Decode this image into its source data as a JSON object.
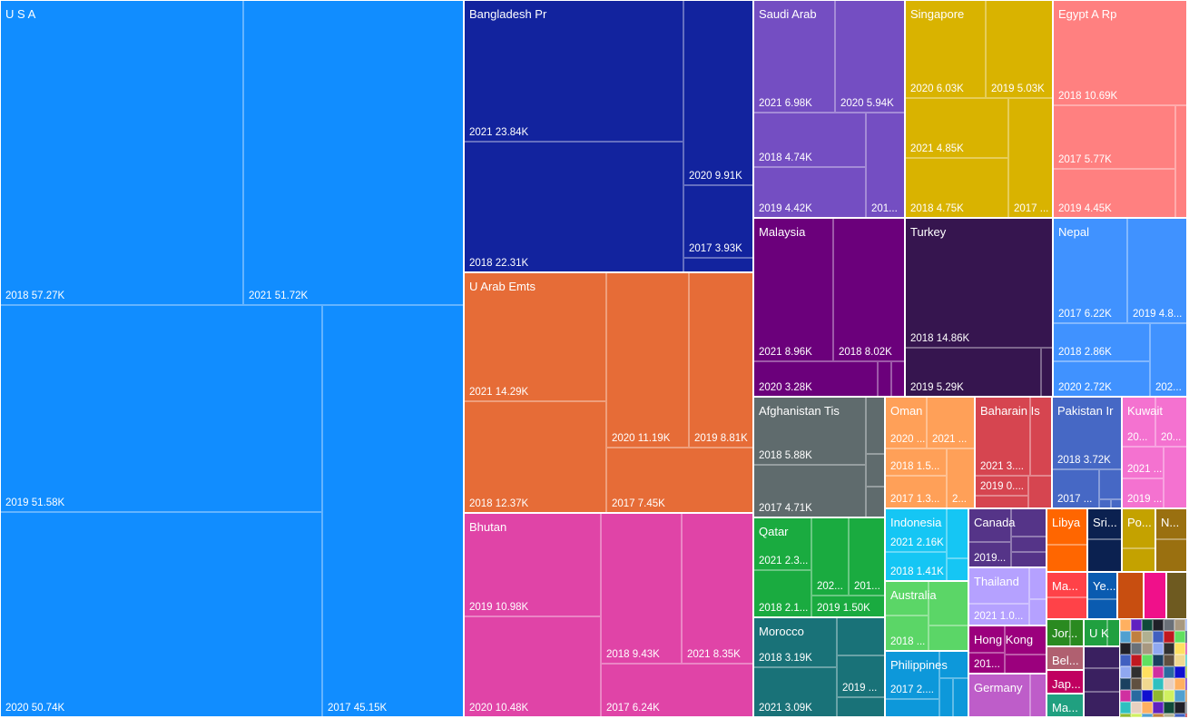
{
  "chart_data": {
    "type": "treemap",
    "title": "",
    "groups": [
      {
        "name": "U S A",
        "color": "#118DFF",
        "items": [
          {
            "label": "2018 57.27K",
            "value": 57.27
          },
          {
            "label": "2021 51.72K",
            "value": 51.72
          },
          {
            "label": "2019 51.58K",
            "value": 51.58
          },
          {
            "label": "2020 50.74K",
            "value": 50.74
          },
          {
            "label": "2017 45.15K",
            "value": 45.15
          }
        ]
      },
      {
        "name": "Bangladesh Pr",
        "color": "#12239E",
        "items": [
          {
            "label": "2021 23.84K",
            "value": 23.84
          },
          {
            "label": "2018 22.31K",
            "value": 22.31
          },
          {
            "label": "2020 9.91K",
            "value": 9.91
          },
          {
            "label": "2017 3.93K",
            "value": 3.93
          },
          {
            "label": ""
          }
        ]
      },
      {
        "name": "U Arab Emts",
        "color": "#E66C37",
        "items": [
          {
            "label": "2021 14.29K",
            "value": 14.29
          },
          {
            "label": "2018 12.37K",
            "value": 12.37
          },
          {
            "label": "2020 11.19K",
            "value": 11.19
          },
          {
            "label": "2019 8.81K",
            "value": 8.81
          },
          {
            "label": "2017 7.45K",
            "value": 7.45
          }
        ]
      },
      {
        "name": "Bhutan",
        "color": "#E044A7",
        "items": [
          {
            "label": "2019 10.98K",
            "value": 10.98
          },
          {
            "label": "2020 10.48K",
            "value": 10.48
          },
          {
            "label": "2018 9.43K",
            "value": 9.43
          },
          {
            "label": "2021 8.35K",
            "value": 8.35
          },
          {
            "label": "2017 6.24K",
            "value": 6.24
          }
        ]
      },
      {
        "name": "Saudi Arab",
        "color": "#744EC2",
        "items": [
          {
            "label": "2021 6.98K",
            "value": 6.98
          },
          {
            "label": "2020 5.94K",
            "value": 5.94
          },
          {
            "label": "2018 4.74K",
            "value": 4.74
          },
          {
            "label": "2019 4.42K",
            "value": 4.42
          },
          {
            "label": "201..."
          }
        ]
      },
      {
        "name": "Singapore",
        "color": "#D9B300",
        "items": [
          {
            "label": "2020 6.03K",
            "value": 6.03
          },
          {
            "label": "2019 5.03K",
            "value": 5.03
          },
          {
            "label": "2021 4.85K",
            "value": 4.85
          },
          {
            "label": "2018 4.75K",
            "value": 4.75
          },
          {
            "label": "2017 ..."
          }
        ]
      },
      {
        "name": "Egypt A Rp",
        "color": "#FF8080",
        "items": [
          {
            "label": "2018 10.69K",
            "value": 10.69
          },
          {
            "label": "2017 5.77K",
            "value": 5.77
          },
          {
            "label": "2019 4.45K",
            "value": 4.45
          },
          {
            "label": ""
          }
        ]
      },
      {
        "name": "Malaysia",
        "color": "#6B007B",
        "items": [
          {
            "label": "2021 8.96K",
            "value": 8.96
          },
          {
            "label": "2018 8.02K",
            "value": 8.02
          },
          {
            "label": "2020 3.28K",
            "value": 3.28
          },
          {
            "label": ""
          },
          {
            "label": ""
          }
        ]
      },
      {
        "name": "Turkey",
        "color": "#36154F",
        "items": [
          {
            "label": "2018 14.86K",
            "value": 14.86
          },
          {
            "label": "2019 5.29K",
            "value": 5.29
          },
          {
            "label": ""
          }
        ]
      },
      {
        "name": "Nepal",
        "color": "#4092FF",
        "items": [
          {
            "label": "2017 6.22K",
            "value": 6.22
          },
          {
            "label": "2019 4.8..."
          },
          {
            "label": "2018 2.86K",
            "value": 2.86
          },
          {
            "label": "2020 2.72K",
            "value": 2.72
          },
          {
            "label": "202..."
          }
        ]
      },
      {
        "name": "Afghanistan Tis",
        "color": "#5F6B6D",
        "items": [
          {
            "label": "2018 5.88K",
            "value": 5.88
          },
          {
            "label": "2017 4.71K",
            "value": 4.71
          },
          {
            "label": ""
          },
          {
            "label": ""
          },
          {
            "label": ""
          }
        ]
      },
      {
        "name": "Oman",
        "color": "#FFA058",
        "items": [
          {
            "label": "2020 ..."
          },
          {
            "label": "2021 ..."
          },
          {
            "label": "2018 1.5..."
          },
          {
            "label": "2017 1.3..."
          },
          {
            "label": "2..."
          }
        ]
      },
      {
        "name": "Baharain Is",
        "color": "#D64550",
        "items": [
          {
            "label": "2021 3...."
          },
          {
            "label": ""
          },
          {
            "label": "2019 0...."
          },
          {
            "label": ""
          },
          {
            "label": ""
          }
        ]
      },
      {
        "name": "Pakistan Ir",
        "color": "#4668C5",
        "items": [
          {
            "label": "2018 3.72K",
            "value": 3.72
          },
          {
            "label": "2017 ..."
          },
          {
            "label": ""
          },
          {
            "label": ""
          },
          {
            "label": ""
          }
        ]
      },
      {
        "name": "Kuwait",
        "color": "#F472D0",
        "items": [
          {
            "label": "20..."
          },
          {
            "label": "20..."
          },
          {
            "label": "2021 ..."
          },
          {
            "label": "2019 ..."
          },
          {
            "label": ""
          }
        ]
      },
      {
        "name": "Qatar",
        "color": "#1AAB40",
        "items": [
          {
            "label": "2021 2.3..."
          },
          {
            "label": "2018 2.1..."
          },
          {
            "label": "202..."
          },
          {
            "label": "201..."
          },
          {
            "label": "2019 1.50K",
            "value": 1.5
          }
        ]
      },
      {
        "name": "Morocco",
        "color": "#197278",
        "items": [
          {
            "label": "2018 3.19K",
            "value": 3.19
          },
          {
            "label": "2021 3.09K",
            "value": 3.09
          },
          {
            "label": ""
          },
          {
            "label": "2019 ..."
          },
          {
            "label": ""
          }
        ]
      },
      {
        "name": "Indonesia",
        "color": "#15C6F4",
        "items": [
          {
            "label": "2021 2.16K",
            "value": 2.16
          },
          {
            "label": "2018 1.41K",
            "value": 1.41
          },
          {
            "label": ""
          },
          {
            "label": ""
          }
        ]
      },
      {
        "name": "Canada",
        "color": "#553488",
        "items": [
          {
            "label": ""
          },
          {
            "label": "2019..."
          },
          {
            "label": ""
          },
          {
            "label": ""
          },
          {
            "label": ""
          }
        ]
      },
      {
        "name": "Australia",
        "color": "#5BD667",
        "items": [
          {
            "label": ""
          },
          {
            "label": "2018 ..."
          },
          {
            "label": ""
          },
          {
            "label": ""
          }
        ]
      },
      {
        "name": "Thailand",
        "color": "#B5A1FF",
        "items": [
          {
            "label": ""
          },
          {
            "label": "2021 1.0..."
          },
          {
            "label": ""
          },
          {
            "label": ""
          }
        ]
      },
      {
        "name": "Philippines",
        "color": "#0D98DA",
        "items": [
          {
            "label": "2017 2...."
          },
          {
            "label": ""
          },
          {
            "label": ""
          },
          {
            "label": ""
          },
          {
            "label": ""
          }
        ]
      },
      {
        "name": "Hong Kong",
        "color": "#9B007D",
        "items": [
          {
            "label": ""
          },
          {
            "label": "201..."
          },
          {
            "label": ""
          },
          {
            "label": ""
          }
        ]
      },
      {
        "name": "Germany",
        "color": "#BE5DC9",
        "items": [
          {
            "label": ""
          },
          {
            "label": ""
          }
        ]
      },
      {
        "name": "Libya",
        "color": "#FF6600",
        "items": [
          {
            "label": ""
          },
          {
            "label": ""
          }
        ]
      },
      {
        "name": "Sri...",
        "color": "#0B2150",
        "items": [
          {
            "label": ""
          },
          {
            "label": ""
          }
        ]
      },
      {
        "name": "Po...",
        "color": "#C4A200",
        "items": [
          {
            "label": ""
          },
          {
            "label": ""
          }
        ]
      },
      {
        "name": "N...",
        "color": "#9A7010",
        "items": [
          {
            "label": ""
          },
          {
            "label": ""
          }
        ]
      },
      {
        "name": "Ma...",
        "color": "#FF4248",
        "items": [
          {
            "label": ""
          },
          {
            "label": ""
          }
        ]
      },
      {
        "name": "Ye...",
        "color": "#0A5BB0",
        "items": [
          {
            "label": ""
          },
          {
            "label": ""
          }
        ]
      },
      {
        "name": "",
        "color": "#C84E10",
        "items": [
          {
            "label": ""
          }
        ]
      },
      {
        "name": "",
        "color": "#F0108A",
        "items": [
          {
            "label": ""
          }
        ]
      },
      {
        "name": "",
        "color": "#6E5A20",
        "items": [
          {
            "label": ""
          }
        ]
      },
      {
        "name": "Jor...",
        "color": "#2A8A20",
        "items": [
          {
            "label": ""
          },
          {
            "label": ""
          }
        ]
      },
      {
        "name": "U K",
        "color": "#20A040",
        "items": [
          {
            "label": ""
          },
          {
            "label": ""
          }
        ]
      },
      {
        "name": "Bel...",
        "color": "#B06070",
        "items": [
          {
            "label": ""
          }
        ]
      },
      {
        "name": "Jap...",
        "color": "#C00060",
        "items": [
          {
            "label": ""
          }
        ]
      },
      {
        "name": "Ma...",
        "color": "#20A080",
        "items": [
          {
            "label": ""
          }
        ]
      },
      {
        "name": "",
        "color": "#3A2060",
        "items": [
          {
            "label": ""
          },
          {
            "label": ""
          },
          {
            "label": ""
          }
        ]
      }
    ]
  }
}
